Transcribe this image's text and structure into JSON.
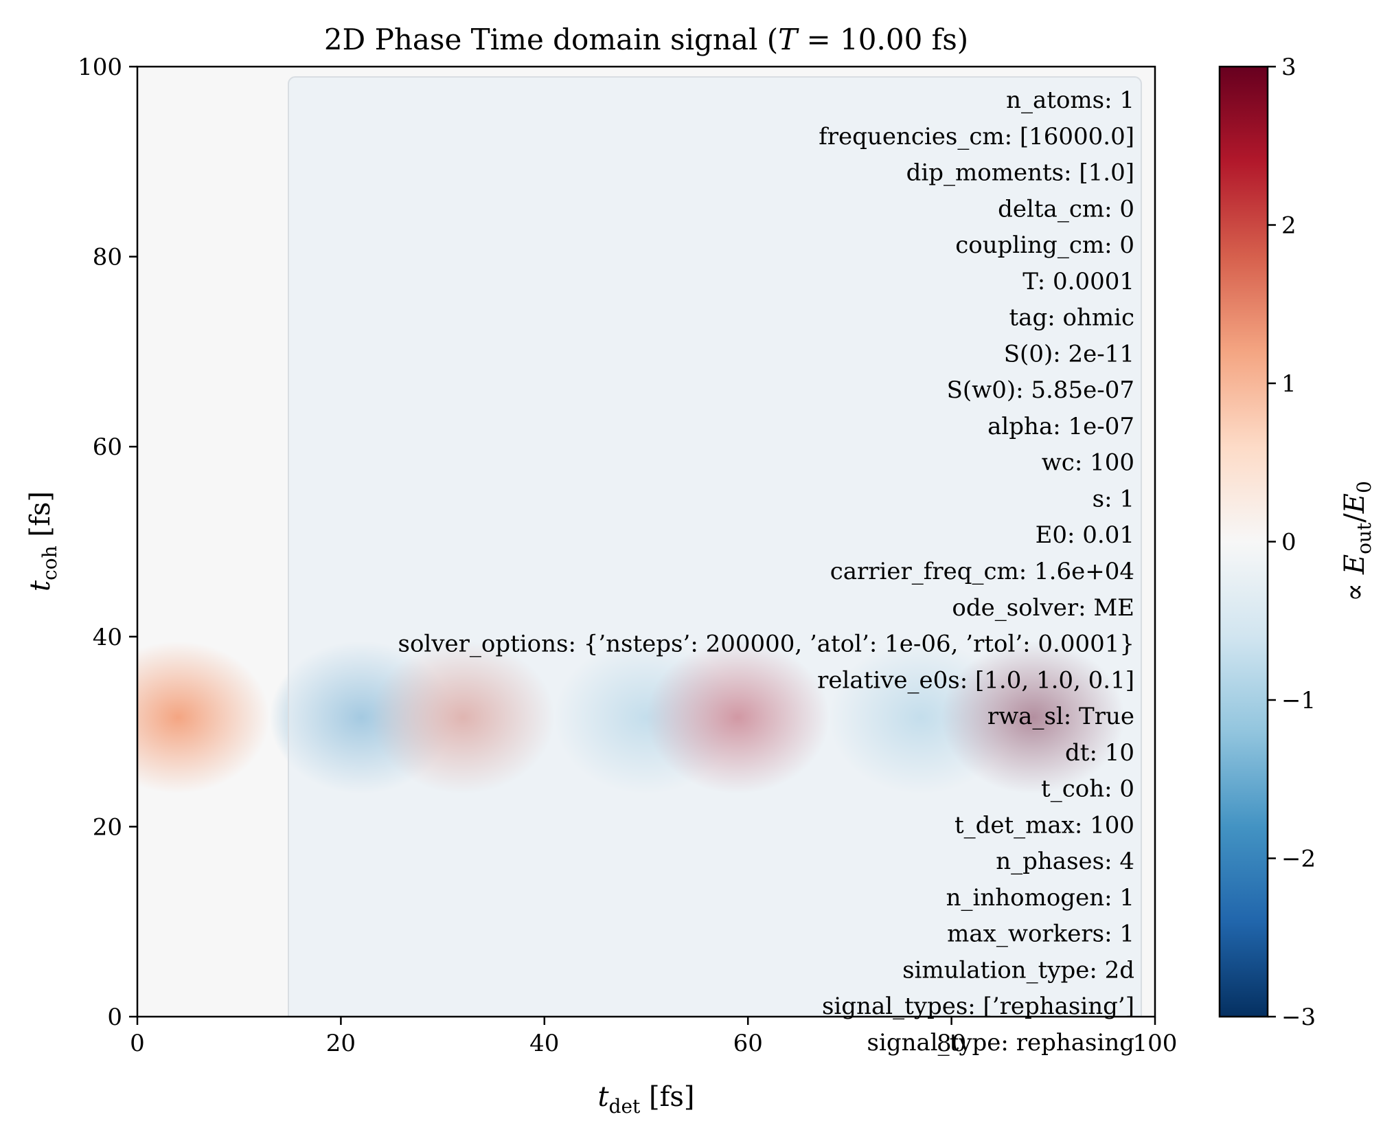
{
  "chart_data": {
    "type": "heatmap",
    "title": {
      "prefix": "2D Phase Time domain signal (",
      "var": "T",
      "suffix": " = 10.00 fs)"
    },
    "xlabel": {
      "var": "t",
      "sub": "det",
      "unit": " [fs]"
    },
    "ylabel": {
      "var": "t",
      "sub": "coh",
      "unit": " [fs]"
    },
    "colorbar_label": {
      "prefix": "∝ ",
      "num_var": "E",
      "num_sub": "out",
      "sep": "/",
      "den_var": "E",
      "den_sub": "0"
    },
    "xlim": [
      0,
      100
    ],
    "ylim": [
      0,
      100
    ],
    "x_ticks": [
      0,
      20,
      40,
      60,
      80,
      100
    ],
    "y_ticks": [
      0,
      20,
      40,
      60,
      80,
      100
    ],
    "colorbar_range": [
      -3,
      3
    ],
    "colorbar_ticks": [
      3,
      2,
      1,
      0,
      -1,
      -2,
      -3
    ],
    "colorbar_tick_labels": [
      "3",
      "2",
      "1",
      "0",
      "−1",
      "−2",
      "−3"
    ],
    "colormap": "RdBu_r",
    "colormap_stops": [
      "#053061",
      "#2166ac",
      "#4393c3",
      "#92c5de",
      "#d1e5f0",
      "#f7f7f7",
      "#fddbc7",
      "#f4a582",
      "#d6604d",
      "#b2182b",
      "#67001f"
    ],
    "band": {
      "t_coh_center": 31.5,
      "t_coh_halfwidth": 8
    },
    "blobs": [
      {
        "t_det": 4,
        "value": 1.3
      },
      {
        "t_det": 22,
        "value": -1.9
      },
      {
        "t_det": 32,
        "value": 2.0
      },
      {
        "t_det": 50,
        "value": -1.5
      },
      {
        "t_det": 59,
        "value": 2.4
      },
      {
        "t_det": 77,
        "value": -1.0
      },
      {
        "t_det": 88,
        "value": 2.9
      }
    ],
    "info_box": [
      "n_atoms: 1",
      "frequencies_cm: [16000.0]",
      "dip_moments: [1.0]",
      "delta_cm: 0",
      "coupling_cm: 0",
      "T: 0.0001",
      "tag: ohmic",
      "S(0): 2e-11",
      "S(w0): 5.85e-07",
      "alpha: 1e-07",
      "wc: 100",
      "s: 1",
      "E0: 0.01",
      "carrier_freq_cm: 1.6e+04",
      "ode_solver: ME",
      "solver_options: {’nsteps’: 200000, ’atol’: 1e-06, ’rtol’: 0.0001}",
      "relative_e0s: [1.0, 1.0, 0.1]",
      "rwa_sl: True",
      "dt: 10",
      "t_coh: 0",
      "t_det_max: 100",
      "n_phases: 4",
      "n_inhomogen: 1",
      "max_workers: 1",
      "simulation_type: 2d",
      "signal_types: [’rephasing’]",
      "signal_type: rephasing"
    ]
  }
}
